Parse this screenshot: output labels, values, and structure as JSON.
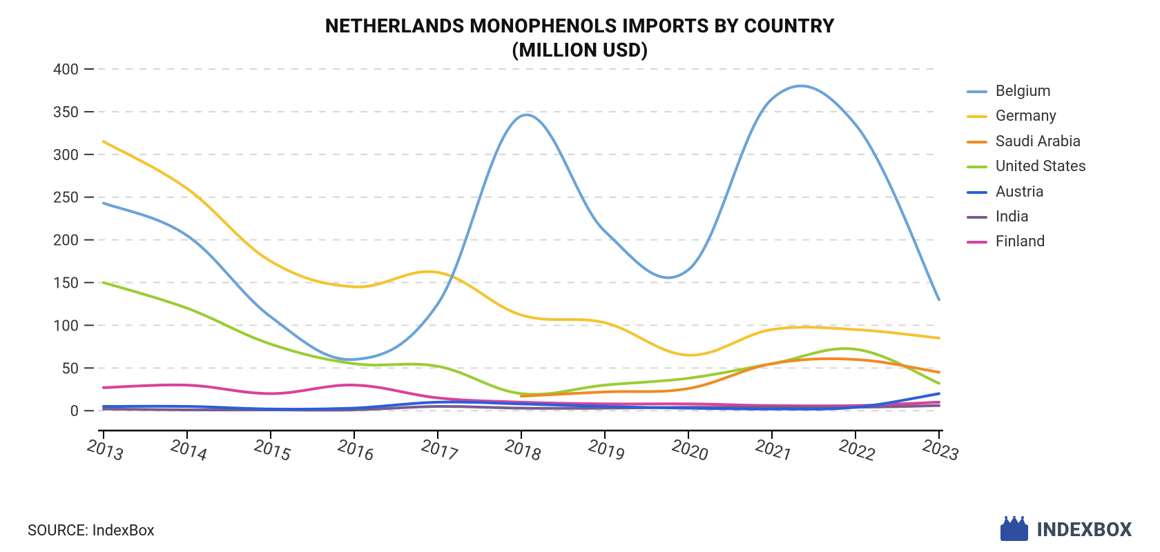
{
  "title_line1": "NETHERLANDS MONOPHENOLS IMPORTS BY COUNTRY",
  "title_line2": "(MILLION USD)",
  "title_fontsize": 28,
  "source_label": "SOURCE: IndexBox",
  "logo_text": "INDEXBOX",
  "logo_color": "#3a4a5a",
  "logo_icon_bg": "#2f4ea0",
  "chart": {
    "type": "line",
    "background_color": "#ffffff",
    "grid_color": "#d6d6d6",
    "grid_dash": "10 10",
    "axis_color": "#000000",
    "line_width": 4,
    "x": {
      "years": [
        2013,
        2014,
        2015,
        2016,
        2017,
        2018,
        2019,
        2020,
        2021,
        2022,
        2023
      ],
      "label_fontsize": 24,
      "label_rotation_deg": 18
    },
    "y": {
      "min": -20,
      "max": 400,
      "tick_step": 50,
      "ticks": [
        0,
        50,
        100,
        150,
        200,
        250,
        300,
        350,
        400
      ],
      "label_fontsize": 22
    },
    "series": [
      {
        "name": "Belgium",
        "color": "#6aa3d8",
        "values": [
          243,
          205,
          110,
          60,
          125,
          345,
          210,
          165,
          365,
          335,
          130
        ]
      },
      {
        "name": "Germany",
        "color": "#f4c430",
        "values": [
          315,
          260,
          175,
          145,
          162,
          112,
          103,
          65,
          95,
          95,
          85
        ]
      },
      {
        "name": "Saudi Arabia",
        "color": "#f08a24",
        "values": [
          null,
          null,
          null,
          null,
          null,
          17,
          22,
          26,
          55,
          60,
          45
        ],
        "start_year": 2018
      },
      {
        "name": "United States",
        "color": "#9acd32",
        "values": [
          150,
          120,
          78,
          55,
          52,
          20,
          30,
          38,
          55,
          72,
          32
        ]
      },
      {
        "name": "Austria",
        "color": "#2b5fd9",
        "values": [
          5,
          5,
          2,
          3,
          10,
          8,
          5,
          3,
          2,
          4,
          20
        ]
      },
      {
        "name": "India",
        "color": "#7a5c8e",
        "values": [
          2,
          1,
          1,
          1,
          5,
          3,
          3,
          4,
          4,
          4,
          6
        ]
      },
      {
        "name": "Finland",
        "color": "#d9429a",
        "values": [
          27,
          30,
          20,
          30,
          15,
          10,
          8,
          8,
          6,
          6,
          10
        ]
      }
    ]
  },
  "legend": {
    "position": "right",
    "fontsize": 22,
    "swatch_width": 30,
    "swatch_height": 4
  }
}
